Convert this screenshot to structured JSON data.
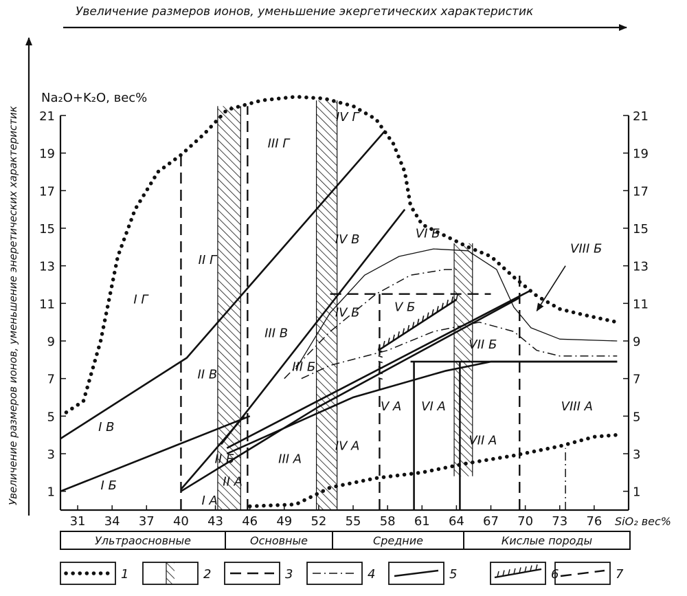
{
  "top_arrow_label": "Увеличение размеров ионов, уменьшение экергетических характеристик",
  "left_arrow_label": "Увеличение размеров ионов, уменьшение энеретических характеристик",
  "y_axis_label": "Na₂O+K₂O, вес%",
  "x_axis_label": "SiO₂ вес%",
  "chart_data": {
    "type": "line",
    "xlim": [
      29.5,
      79
    ],
    "ylim": [
      0,
      21
    ],
    "y_ticks": [
      1,
      3,
      5,
      7,
      9,
      11,
      13,
      15,
      17,
      19,
      21
    ],
    "x_ticks": [
      31,
      34,
      37,
      40,
      43,
      46,
      49,
      52,
      55,
      58,
      61,
      64,
      67,
      70,
      73,
      76
    ],
    "series": [
      {
        "style": "dotted",
        "points": [
          [
            30,
            5.2
          ],
          [
            31.5,
            5.8
          ],
          [
            33,
            9
          ],
          [
            34.5,
            13.5
          ],
          [
            36,
            16
          ],
          [
            38,
            18
          ],
          [
            40,
            18.9
          ],
          [
            42,
            20
          ],
          [
            44,
            21.3
          ],
          [
            47,
            21.8
          ],
          [
            50,
            22
          ],
          [
            52.5,
            21.9
          ],
          [
            55,
            21.5
          ],
          [
            57,
            20.8
          ],
          [
            58.5,
            19.5
          ],
          [
            59.5,
            18
          ],
          [
            60,
            16.2
          ],
          [
            61,
            15.2
          ],
          [
            63,
            14.6
          ],
          [
            65,
            14
          ],
          [
            67,
            13.5
          ],
          [
            69,
            12.4
          ],
          [
            71,
            11.4
          ],
          [
            73,
            10.7
          ],
          [
            75,
            10.4
          ],
          [
            78,
            10
          ]
        ]
      },
      {
        "style": "dotted",
        "points": [
          [
            46,
            0.2
          ],
          [
            50,
            0.3
          ],
          [
            53,
            1.2
          ],
          [
            57,
            1.7
          ],
          [
            61,
            2
          ],
          [
            65,
            2.5
          ],
          [
            69,
            2.9
          ],
          [
            73,
            3.4
          ],
          [
            76,
            3.9
          ],
          [
            78,
            4
          ]
        ]
      },
      {
        "style": "solid",
        "points": [
          [
            29.5,
            3.8
          ],
          [
            40.5,
            8.1
          ],
          [
            57.8,
            20.2
          ]
        ]
      },
      {
        "style": "solid",
        "points": [
          [
            29.5,
            1
          ],
          [
            46,
            5
          ]
        ]
      },
      {
        "style": "solid",
        "points": [
          [
            40,
            1
          ],
          [
            52,
            5.5
          ],
          [
            69.5,
            11.3
          ]
        ]
      },
      {
        "style": "solid",
        "points": [
          [
            43.5,
            3.5
          ],
          [
            59.5,
            16
          ]
        ]
      },
      {
        "style": "solid",
        "points": [
          [
            40,
            1.1
          ],
          [
            45.5,
            5
          ]
        ]
      },
      {
        "style": "solid",
        "points": [
          [
            44,
            3.3
          ],
          [
            70.5,
            11.7
          ]
        ]
      },
      {
        "style": "solid",
        "points": [
          [
            44,
            3
          ],
          [
            55,
            6
          ],
          [
            63,
            7.4
          ],
          [
            67,
            7.9
          ],
          [
            78,
            7.9
          ]
        ]
      },
      {
        "style": "solid",
        "points": [
          [
            60,
            7.9
          ],
          [
            78,
            7.9
          ]
        ]
      },
      {
        "style": "thin",
        "points": [
          [
            50,
            7.5
          ],
          [
            53,
            10.5
          ],
          [
            56,
            12.5
          ],
          [
            59,
            13.5
          ],
          [
            62,
            13.9
          ],
          [
            65,
            13.8
          ],
          [
            67.5,
            12.8
          ],
          [
            69,
            10.8
          ],
          [
            70.5,
            9.7
          ],
          [
            73,
            9.1
          ],
          [
            78,
            9
          ]
        ]
      },
      {
        "style": "dashdot",
        "points": [
          [
            49,
            7
          ],
          [
            53,
            9.5
          ],
          [
            57,
            11.5
          ],
          [
            60,
            12.5
          ],
          [
            63,
            12.8
          ],
          [
            64,
            12.8
          ]
        ]
      },
      {
        "style": "dashdot",
        "points": [
          [
            50.5,
            7
          ],
          [
            53,
            7.7
          ],
          [
            58,
            8.5
          ],
          [
            62,
            9.5
          ],
          [
            66,
            10
          ],
          [
            69,
            9.5
          ],
          [
            71,
            8.5
          ],
          [
            73,
            8.2
          ],
          [
            78,
            8.2
          ]
        ]
      },
      {
        "style": "dashed",
        "points": [
          [
            53,
            11.5
          ],
          [
            67,
            11.5
          ]
        ]
      }
    ],
    "vlines": [
      {
        "x": 40,
        "y1": 0,
        "y2": 18.9,
        "style": "dashed"
      },
      {
        "x": 45.8,
        "y1": 0,
        "y2": 21.5,
        "style": "dashed"
      },
      {
        "x": 57.3,
        "y1": 0,
        "y2": 11.5,
        "style": "dashed"
      },
      {
        "x": 60.3,
        "y1": 0,
        "y2": 7.9,
        "style": "solid"
      },
      {
        "x": 64.3,
        "y1": 0,
        "y2": 7.9,
        "style": "solid"
      },
      {
        "x": 69.5,
        "y1": 0,
        "y2": 12.5,
        "style": "dashed"
      },
      {
        "x": 73.5,
        "y1": 0,
        "y2": 3.3,
        "style": "dashdot"
      }
    ],
    "hatched_bands": [
      {
        "x1": 43.2,
        "x2": 45.2,
        "y1": 0,
        "y2": 21.5
      },
      {
        "x1": 51.8,
        "x2": 53.6,
        "y1": 0,
        "y2": 21.8
      },
      {
        "x1": 63.8,
        "x2": 65.4,
        "y1": 1.8,
        "y2": 14.2
      }
    ],
    "hachured_line": {
      "from": [
        57.2,
        8.5
      ],
      "to": [
        64,
        11.2
      ]
    },
    "region_labels": [
      {
        "text": "I Г",
        "x": 36.5,
        "y": 11
      },
      {
        "text": "I В",
        "x": 33.5,
        "y": 4.2
      },
      {
        "text": "I Б",
        "x": 33.7,
        "y": 1.1
      },
      {
        "text": "II Г",
        "x": 42.3,
        "y": 13.1
      },
      {
        "text": "II В",
        "x": 42.3,
        "y": 7
      },
      {
        "text": "II Б",
        "x": 43.8,
        "y": 2.5
      },
      {
        "text": "II А",
        "x": 44.5,
        "y": 1.3
      },
      {
        "text": "I А",
        "x": 42.5,
        "y": 0.3
      },
      {
        "text": "III Г",
        "x": 48.5,
        "y": 19.3
      },
      {
        "text": "III В",
        "x": 48.3,
        "y": 9.2
      },
      {
        "text": "III Б",
        "x": 50.7,
        "y": 7.4
      },
      {
        "text": "III А",
        "x": 49.5,
        "y": 2.5
      },
      {
        "text": "IV Г",
        "x": 54.5,
        "y": 20.7
      },
      {
        "text": "IV В",
        "x": 54.5,
        "y": 14.2
      },
      {
        "text": "IV Б",
        "x": 54.5,
        "y": 10.3
      },
      {
        "text": "IV А",
        "x": 54.5,
        "y": 3.2
      },
      {
        "text": "V Б",
        "x": 59.5,
        "y": 10.6
      },
      {
        "text": "V А",
        "x": 58.3,
        "y": 5.3
      },
      {
        "text": "VI Б",
        "x": 61.5,
        "y": 14.5
      },
      {
        "text": "VI А",
        "x": 62,
        "y": 5.3
      },
      {
        "text": "VII Б",
        "x": 66.3,
        "y": 8.6
      },
      {
        "text": "VII А",
        "x": 66.3,
        "y": 3.5
      },
      {
        "text": "VIII А",
        "x": 74.5,
        "y": 5.3
      }
    ],
    "callout_label": {
      "text": "VIII Б",
      "x": 75.3,
      "y": 13.7
    },
    "callout_arrow": {
      "from": [
        73.5,
        13
      ],
      "to": [
        71,
        10.6
      ]
    }
  },
  "rock_classes": [
    "Ультраосновные",
    "Основные",
    "Средние",
    "Кислые породы"
  ],
  "legend": [
    {
      "symbol": "dotted",
      "label": "1"
    },
    {
      "symbol": "hatched",
      "label": "2"
    },
    {
      "symbol": "dashed",
      "label": "3"
    },
    {
      "symbol": "dashdot",
      "label": "4"
    },
    {
      "symbol": "thick",
      "label": "5"
    },
    {
      "symbol": "hachure",
      "label": "6"
    },
    {
      "symbol": "longdash",
      "label": "7"
    }
  ]
}
